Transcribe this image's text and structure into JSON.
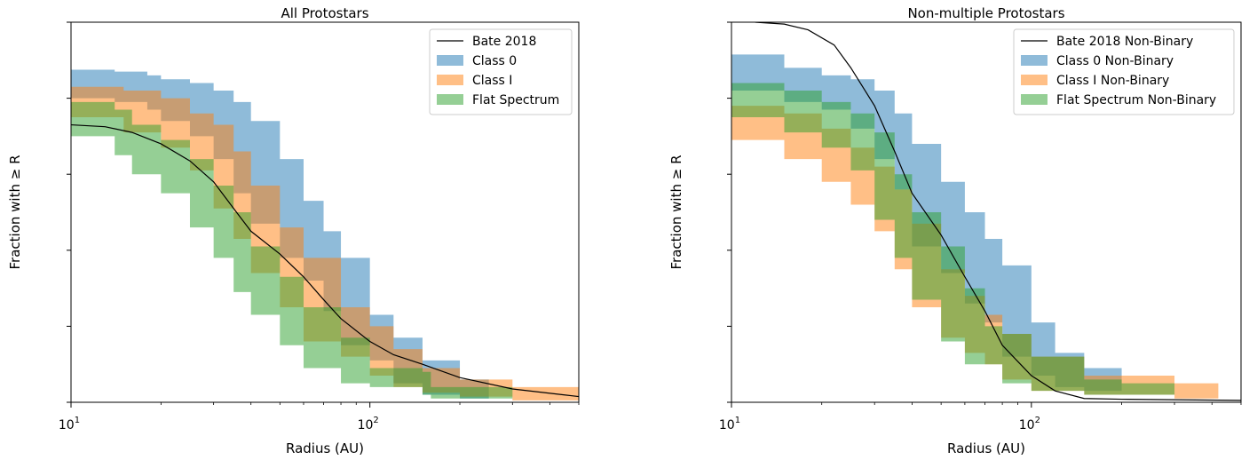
{
  "chart_data": [
    {
      "type": "area",
      "title": "All Protostars",
      "xlabel": "Radius (AU)",
      "ylabel": "Fraction with ≥ R",
      "xscale": "log",
      "xlim": [
        10,
        500
      ],
      "ylim": [
        0,
        1
      ],
      "x_ticks": [
        {
          "value": 10,
          "base": "10",
          "exp": "1"
        },
        {
          "value": 100,
          "base": "10",
          "exp": "2"
        }
      ],
      "y_ticks": [
        "0.0",
        "0.2",
        "0.4",
        "0.6",
        "0.8",
        "1.0"
      ],
      "legend_position": "top-right",
      "series": [
        {
          "name": "Bate 2018",
          "kind": "line",
          "color": "#000000",
          "points": [
            [
              10,
              0.73
            ],
            [
              13,
              0.725
            ],
            [
              16,
              0.71
            ],
            [
              20,
              0.68
            ],
            [
              25,
              0.635
            ],
            [
              30,
              0.58
            ],
            [
              35,
              0.51
            ],
            [
              40,
              0.45
            ],
            [
              50,
              0.39
            ],
            [
              60,
              0.33
            ],
            [
              70,
              0.27
            ],
            [
              80,
              0.22
            ],
            [
              100,
              0.16
            ],
            [
              120,
              0.125
            ],
            [
              150,
              0.1
            ],
            [
              200,
              0.065
            ],
            [
              300,
              0.035
            ],
            [
              500,
              0.015
            ]
          ]
        },
        {
          "name": "Class 0",
          "kind": "band",
          "color": "#1f77b4",
          "points": [
            [
              10,
              0.805,
              0.875
            ],
            [
              14,
              0.8,
              0.87
            ],
            [
              18,
              0.79,
              0.86
            ],
            [
              20,
              0.77,
              0.85
            ],
            [
              25,
              0.74,
              0.84
            ],
            [
              30,
              0.7,
              0.82
            ],
            [
              35,
              0.64,
              0.79
            ],
            [
              40,
              0.55,
              0.74
            ],
            [
              50,
              0.47,
              0.64
            ],
            [
              60,
              0.38,
              0.53
            ],
            [
              70,
              0.32,
              0.45
            ],
            [
              80,
              0.24,
              0.38
            ],
            [
              100,
              0.15,
              0.23
            ],
            [
              120,
              0.11,
              0.17
            ],
            [
              150,
              0.05,
              0.11
            ],
            [
              200,
              0.02,
              0.06
            ],
            [
              250,
              0.01,
              0.04
            ]
          ]
        },
        {
          "name": "Class I",
          "kind": "band",
          "color": "#ff7f0e",
          "points": [
            [
              10,
              0.76,
              0.83
            ],
            [
              15,
              0.75,
              0.82
            ],
            [
              20,
              0.71,
              0.8
            ],
            [
              25,
              0.67,
              0.76
            ],
            [
              30,
              0.61,
              0.73
            ],
            [
              35,
              0.51,
              0.66
            ],
            [
              40,
              0.43,
              0.57
            ],
            [
              50,
              0.34,
              0.46
            ],
            [
              60,
              0.25,
              0.38
            ],
            [
              80,
              0.16,
              0.25
            ],
            [
              100,
              0.12,
              0.2
            ],
            [
              120,
              0.07,
              0.14
            ],
            [
              150,
              0.04,
              0.09
            ],
            [
              200,
              0.025,
              0.06
            ],
            [
              300,
              0.015,
              0.04
            ],
            [
              500,
              0.005,
              0.02
            ]
          ]
        },
        {
          "name": "Flat Spectrum",
          "kind": "band",
          "color": "#2ca02c",
          "points": [
            [
              10,
              0.73,
              0.79
            ],
            [
              14,
              0.7,
              0.77
            ],
            [
              16,
              0.65,
              0.73
            ],
            [
              20,
              0.6,
              0.69
            ],
            [
              25,
              0.55,
              0.64
            ],
            [
              30,
              0.46,
              0.57
            ],
            [
              35,
              0.38,
              0.5
            ],
            [
              40,
              0.29,
              0.41
            ],
            [
              50,
              0.23,
              0.33
            ],
            [
              60,
              0.15,
              0.25
            ],
            [
              80,
              0.09,
              0.17
            ],
            [
              100,
              0.05,
              0.09
            ],
            [
              150,
              0.04,
              0.08
            ],
            [
              160,
              0.02,
              0.04
            ],
            [
              300,
              0.01,
              0.03
            ]
          ]
        }
      ]
    },
    {
      "type": "area",
      "title": "Non-multiple Protostars",
      "xlabel": "Radius (AU)",
      "ylabel": "Fraction with ≥ R",
      "xscale": "log",
      "xlim": [
        10,
        500
      ],
      "ylim": [
        0,
        1
      ],
      "x_ticks": [
        {
          "value": 10,
          "base": "10",
          "exp": "1"
        },
        {
          "value": 100,
          "base": "10",
          "exp": "2"
        }
      ],
      "y_ticks": [
        "0.0",
        "0.2",
        "0.4",
        "0.6",
        "0.8",
        "1.0"
      ],
      "legend_position": "top-right",
      "series": [
        {
          "name": "Bate 2018 Non-Binary",
          "kind": "line",
          "color": "#000000",
          "points": [
            [
              12,
              1.0
            ],
            [
              15,
              0.995
            ],
            [
              18,
              0.98
            ],
            [
              22,
              0.94
            ],
            [
              25,
              0.88
            ],
            [
              30,
              0.78
            ],
            [
              35,
              0.66
            ],
            [
              40,
              0.55
            ],
            [
              50,
              0.44
            ],
            [
              60,
              0.33
            ],
            [
              70,
              0.24
            ],
            [
              80,
              0.15
            ],
            [
              100,
              0.07
            ],
            [
              120,
              0.03
            ],
            [
              150,
              0.01
            ],
            [
              200,
              0.008
            ],
            [
              500,
              0.005
            ]
          ]
        },
        {
          "name": "Class 0 Non-Binary",
          "kind": "band",
          "color": "#1f77b4",
          "points": [
            [
              10,
              0.84,
              0.915
            ],
            [
              15,
              0.82,
              0.88
            ],
            [
              20,
              0.79,
              0.86
            ],
            [
              25,
              0.77,
              0.85
            ],
            [
              30,
              0.72,
              0.82
            ],
            [
              35,
              0.64,
              0.76
            ],
            [
              40,
              0.56,
              0.68
            ],
            [
              50,
              0.41,
              0.58
            ],
            [
              60,
              0.34,
              0.5
            ],
            [
              70,
              0.26,
              0.43
            ],
            [
              80,
              0.21,
              0.36
            ],
            [
              100,
              0.12,
              0.21
            ],
            [
              120,
              0.07,
              0.13
            ],
            [
              150,
              0.04,
              0.09
            ],
            [
              200,
              0.03,
              0.06
            ]
          ]
        },
        {
          "name": "Class I Non-Binary",
          "kind": "band",
          "color": "#ff7f0e",
          "points": [
            [
              10,
              0.71,
              0.78
            ],
            [
              15,
              0.69,
              0.76
            ],
            [
              20,
              0.64,
              0.72
            ],
            [
              25,
              0.58,
              0.67
            ],
            [
              30,
              0.52,
              0.62
            ],
            [
              35,
              0.45,
              0.56
            ],
            [
              40,
              0.35,
              0.47
            ],
            [
              50,
              0.25,
              0.35
            ],
            [
              60,
              0.17,
              0.28
            ],
            [
              70,
              0.13,
              0.23
            ],
            [
              80,
              0.1,
              0.18
            ],
            [
              100,
              0.06,
              0.12
            ],
            [
              150,
              0.03,
              0.07
            ],
            [
              300,
              0.02,
              0.05
            ],
            [
              420,
              0.01,
              0.03
            ]
          ]
        },
        {
          "name": "Flat Spectrum  Non-Binary",
          "kind": "band",
          "color": "#2ca02c",
          "points": [
            [
              10,
              0.76,
              0.84
            ],
            [
              15,
              0.75,
              0.82
            ],
            [
              20,
              0.71,
              0.79
            ],
            [
              25,
              0.67,
              0.76
            ],
            [
              30,
              0.61,
              0.71
            ],
            [
              35,
              0.48,
              0.6
            ],
            [
              40,
              0.38,
              0.5
            ],
            [
              50,
              0.27,
              0.41
            ],
            [
              60,
              0.16,
              0.3
            ],
            [
              70,
              0.1,
              0.2
            ],
            [
              80,
              0.1,
              0.18
            ],
            [
              100,
              0.05,
              0.12
            ],
            [
              150,
              0.03,
              0.06
            ],
            [
              200,
              0.02,
              0.05
            ],
            [
              300,
              0.02,
              0.04
            ]
          ]
        }
      ]
    }
  ]
}
